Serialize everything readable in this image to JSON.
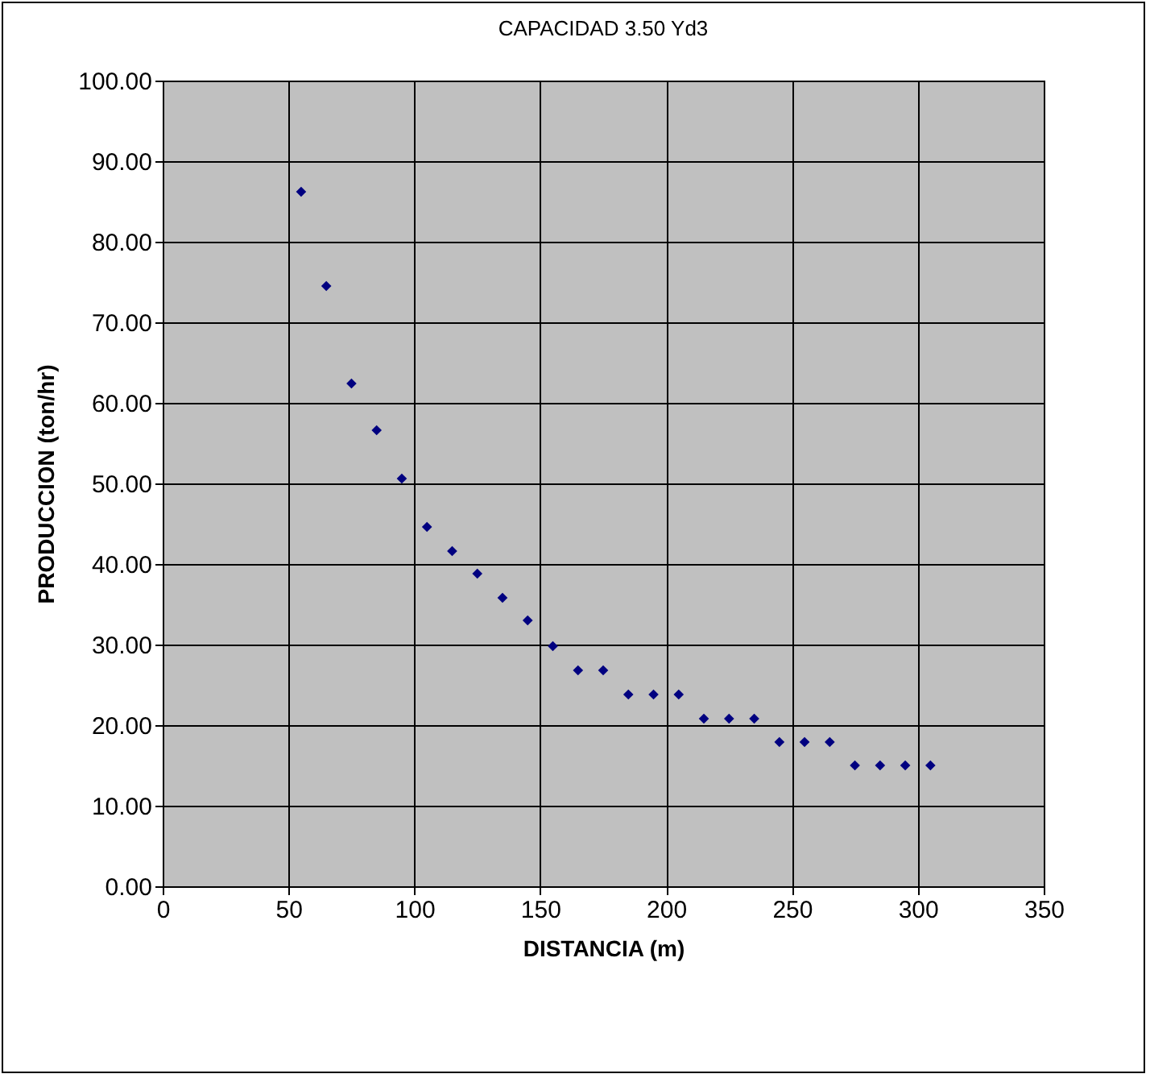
{
  "chart_data": {
    "type": "scatter",
    "title": "CAPACIDAD 3.50 Yd3",
    "xlabel": "DISTANCIA (m)",
    "ylabel": "PRODUCCION (ton/hr)",
    "x": [
      55,
      65,
      75,
      85,
      95,
      105,
      115,
      125,
      135,
      145,
      155,
      165,
      175,
      185,
      195,
      205,
      215,
      225,
      235,
      245,
      255,
      265,
      275,
      285,
      295,
      305
    ],
    "series": [
      {
        "color": "#000080",
        "values": [
          86.2,
          74.5,
          62.4,
          56.6,
          50.6,
          44.6,
          41.6,
          38.8,
          35.8,
          33,
          29.8,
          26.8,
          26.8,
          23.8,
          23.8,
          23.8,
          20.8,
          20.8,
          20.8,
          17.9,
          17.9,
          17.9,
          15,
          15,
          15,
          15
        ]
      }
    ],
    "xlim": [
      0,
      350
    ],
    "xticks": [
      0,
      50,
      100,
      150,
      200,
      250,
      300,
      350
    ],
    "ylim": [
      0,
      100
    ],
    "yticks": [
      {
        "value": 0,
        "label": "0.00"
      },
      {
        "value": 10,
        "label": "10.00"
      },
      {
        "value": 20,
        "label": "20.00"
      },
      {
        "value": 30,
        "label": "30.00"
      },
      {
        "value": 40,
        "label": "40.00"
      },
      {
        "value": 50,
        "label": "50.00"
      },
      {
        "value": 60,
        "label": "60.00"
      },
      {
        "value": 70,
        "label": "70.00"
      },
      {
        "value": 80,
        "label": "80.00"
      },
      {
        "value": 90,
        "label": "90.00"
      },
      {
        "value": 100,
        "label": "100.00"
      }
    ],
    "grid": true,
    "marker": "diamond"
  }
}
